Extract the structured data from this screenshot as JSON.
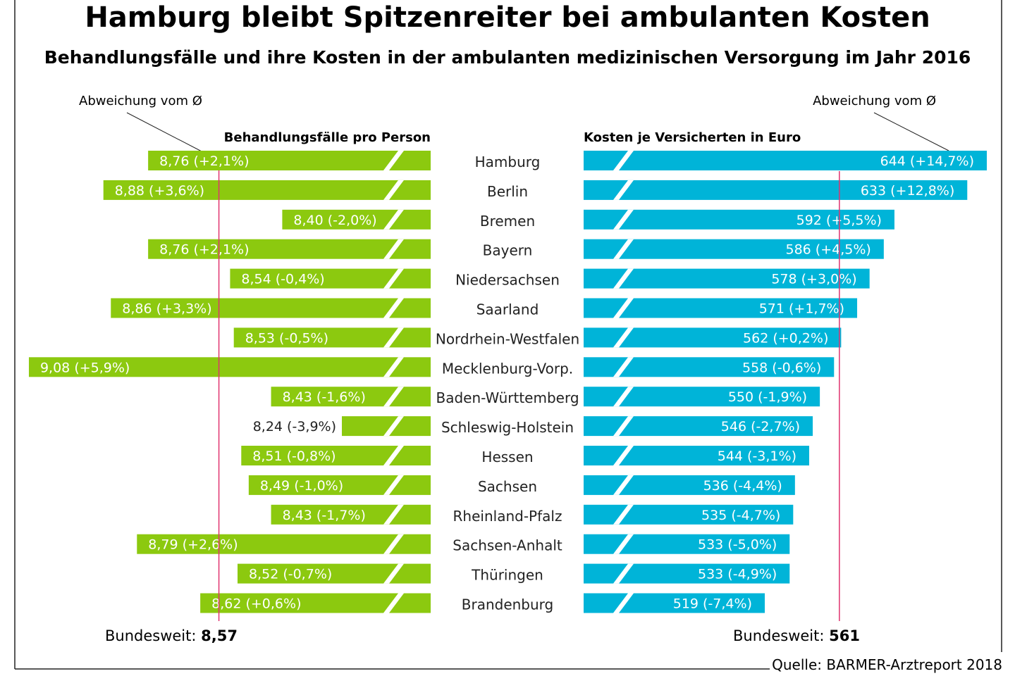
{
  "chart_data": [
    {
      "type": "bar",
      "title": "Hamburg bleibt Spitzenreiter bei ambulanten Kosten",
      "subtitle": "Behandlungsfälle und ihre Kosten in der ambulanten medizinischen Versorgung im Jahr 2016",
      "series_label": "Behandlungsfälle pro Person",
      "annotation": "Abweichung vom Ø",
      "reference_label": "Bundesweit:",
      "reference_value": "8,57",
      "reference": 8.57,
      "color": "#8cc90f",
      "reference_color": "#e0336e",
      "categories": [
        "Hamburg",
        "Berlin",
        "Bremen",
        "Bayern",
        "Niedersachsen",
        "Saarland",
        "Nordrhein-Westfalen",
        "Mecklenburg-Vorp.",
        "Baden-Württemberg",
        "Schleswig-Holstein",
        "Hessen",
        "Sachsen",
        "Rheinland-Pfalz",
        "Sachsen-Anhalt",
        "Thüringen",
        "Brandenburg"
      ],
      "values": [
        8.76,
        8.88,
        8.4,
        8.76,
        8.54,
        8.86,
        8.53,
        9.08,
        8.43,
        8.24,
        8.51,
        8.49,
        8.43,
        8.79,
        8.52,
        8.62
      ],
      "labels": [
        "8,76 (+2,1%)",
        "8,88 (+3,6%)",
        "8,40 (-2,0%)",
        "8,76 (+2,1%)",
        "8,54 (-0,4%)",
        "8,86 (+3,3%)",
        "8,53 (-0,5%)",
        "9,08 (+5,9%)",
        "8,43 (-1,6%)",
        "8,24 (-3,9%)",
        "8,51 (-0,8%)",
        "8,49 (-1,0%)",
        "8,43 (-1,7%)",
        "8,79 (+2,6%)",
        "8,52 (-0,7%)",
        "8,62 (+0,6%)"
      ]
    },
    {
      "type": "bar",
      "series_label": "Kosten je Versicherten in Euro",
      "annotation": "Abweichung vom Ø",
      "reference_label": "Bundesweit:",
      "reference_value": "561",
      "reference": 561,
      "color": "#00b4d8",
      "reference_color": "#e0336e",
      "values": [
        644,
        633,
        592,
        586,
        578,
        571,
        562,
        558,
        550,
        546,
        544,
        536,
        535,
        533,
        533,
        519
      ],
      "labels": [
        "644 (+14,7%)",
        "633 (+12,8%)",
        "592 (+5,5%)",
        "586 (+4,5%)",
        "578 (+3,0%)",
        "571 (+1,7%)",
        "562 (+0,2%)",
        "558 (-0,6%)",
        "550 (-1,9%)",
        "546 (-2,7%)",
        "544 (-3,1%)",
        "536 (-4,4%)",
        "535 (-4,7%)",
        "533 (-5,0%)",
        "533 (-4,9%)",
        "519 (-7,4%)"
      ]
    }
  ],
  "source": "Quelle: BARMER-Arztreport 2018"
}
